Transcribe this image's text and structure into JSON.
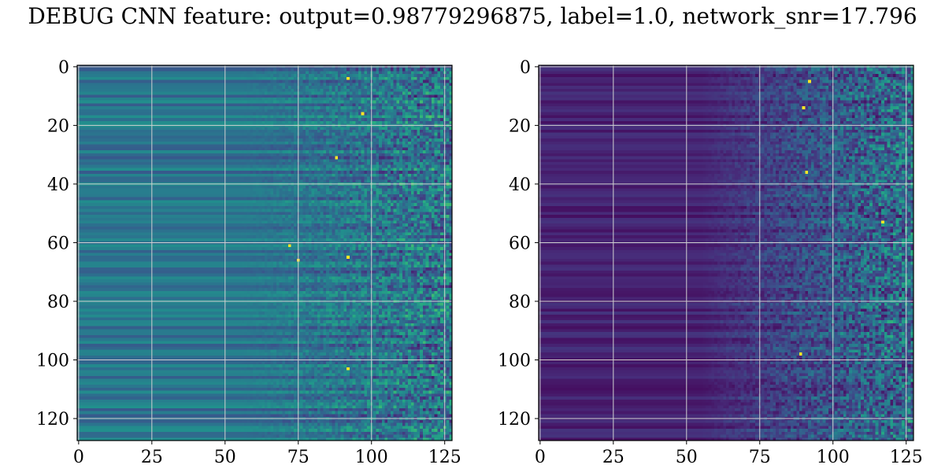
{
  "title": "DEBUG CNN feature: output=0.98779296875, label=1.0, network_snr=17.796",
  "chart_data": [
    {
      "type": "heatmap",
      "colormap": "viridis",
      "rows": 128,
      "cols": 128,
      "xlim": [
        0,
        127
      ],
      "ylim": [
        127,
        0
      ],
      "xticks": [
        0,
        25,
        50,
        75,
        100,
        125
      ],
      "yticks": [
        0,
        20,
        40,
        60,
        80,
        100,
        120
      ],
      "grid": true,
      "description_values": "Columns 0–49 show smooth horizontal banding (values ~0.25–0.5 on viridis scale); columns 75–127 are noisy with bright yellow spikes.",
      "bright_points": [
        [
          92,
          4
        ],
        [
          88,
          31
        ],
        [
          72,
          61
        ],
        [
          92,
          65
        ],
        [
          92,
          103
        ],
        [
          97,
          16
        ],
        [
          75,
          66
        ]
      ]
    },
    {
      "type": "heatmap",
      "colormap": "viridis",
      "rows": 128,
      "cols": 128,
      "xlim": [
        0,
        127
      ],
      "ylim": [
        127,
        0
      ],
      "xticks": [
        0,
        25,
        50,
        75,
        100,
        125
      ],
      "yticks": [
        0,
        20,
        40,
        60,
        80,
        100,
        120
      ],
      "grid": true,
      "description_values": "Mostly dark purple (low values) for columns 0–60 with faint banding; columns 60–127 contain sparse speckled higher values with a few yellow peaks.",
      "bright_points": [
        [
          92,
          5
        ],
        [
          91,
          36
        ],
        [
          117,
          53
        ],
        [
          89,
          98
        ],
        [
          90,
          14
        ]
      ]
    }
  ]
}
